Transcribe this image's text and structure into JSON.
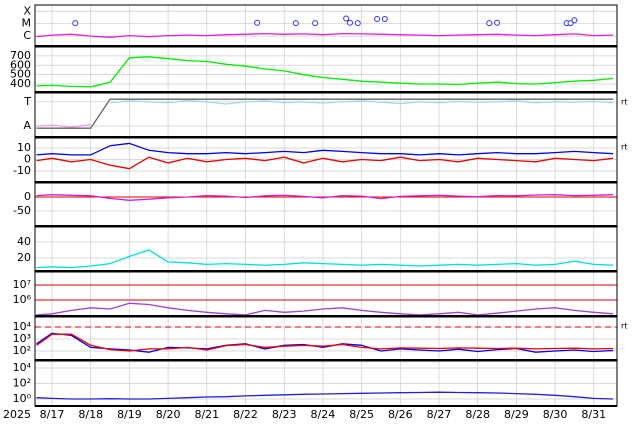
{
  "x_axis": {
    "year_label": "2025",
    "xlim": [
      16.56,
      31.6
    ],
    "xticks": [
      {
        "value": 17,
        "label": "8/17"
      },
      {
        "value": 18,
        "label": "8/18"
      },
      {
        "value": 19,
        "label": "8/19"
      },
      {
        "value": 20,
        "label": "8/20"
      },
      {
        "value": 21,
        "label": "8/21"
      },
      {
        "value": 22,
        "label": "8/22"
      },
      {
        "value": 23,
        "label": "8/23"
      },
      {
        "value": 24,
        "label": "8/24"
      },
      {
        "value": 25,
        "label": "8/25"
      },
      {
        "value": 26,
        "label": "8/26"
      },
      {
        "value": 27,
        "label": "8/27"
      },
      {
        "value": 28,
        "label": "8/28"
      },
      {
        "value": 29,
        "label": "8/29"
      },
      {
        "value": 30,
        "label": "8/30"
      },
      {
        "value": 31,
        "label": "8/31"
      }
    ]
  },
  "chart_data": [
    {
      "type": "line",
      "log_scale": true,
      "ylim": [
        1.6e-07,
        0.00032
      ],
      "yticks": [
        {
          "value": 0.0001,
          "label": "X"
        },
        {
          "value": 1e-05,
          "label": "M"
        },
        {
          "value": 1e-06,
          "label": "C"
        }
      ],
      "x": [
        16.6,
        17,
        17.5,
        18,
        18.5,
        19,
        19.5,
        20,
        20.5,
        21,
        21.5,
        22,
        22.5,
        23,
        23.5,
        24,
        24.5,
        25,
        25.5,
        26,
        26.5,
        27,
        27.5,
        28,
        28.5,
        29,
        29.5,
        30,
        30.5,
        31,
        31.5
      ],
      "series": [
        {
          "color": "#e020e0",
          "values": [
            9e-07,
            1.2e-06,
            1.4e-06,
            1e-06,
            8e-07,
            1.1e-06,
            9e-07,
            1.1e-06,
            1.2e-06,
            1.1e-06,
            1.3e-06,
            1.4e-06,
            1.6e-06,
            1.4e-06,
            1.5e-06,
            1.3e-06,
            1.6e-06,
            1.5e-06,
            1.4e-06,
            1.3e-06,
            1.2e-06,
            1.1e-06,
            1.2e-06,
            1.3e-06,
            1.4e-06,
            1.2e-06,
            1.1e-06,
            1.3e-06,
            1.5e-06,
            1.1e-06,
            1.2e-06
          ]
        },
        {
          "color": "#3030ff",
          "marker": "circle",
          "x": [
            17.6,
            22.3,
            23.3,
            23.8,
            24.6,
            24.7,
            24.9,
            25.4,
            25.6,
            28.3,
            28.5,
            30.3,
            30.4,
            30.5
          ],
          "values": [
            1.1e-05,
            1.2e-05,
            1.1e-05,
            1.1e-05,
            2.6e-05,
            1.2e-05,
            1.1e-05,
            2.4e-05,
            2.4e-05,
            1.1e-05,
            1.2e-05,
            1.1e-05,
            1.1e-05,
            1.9e-05
          ]
        }
      ]
    },
    {
      "type": "line",
      "ylim": [
        315,
        795
      ],
      "yticks": [
        400,
        500,
        600,
        700
      ],
      "x": [
        16.6,
        17,
        17.5,
        18,
        18.5,
        19,
        19.5,
        20,
        20.5,
        21,
        21.5,
        22,
        22.5,
        23,
        23.5,
        24,
        24.5,
        25,
        25.5,
        26,
        26.5,
        27,
        27.5,
        28,
        28.5,
        29,
        29.5,
        30,
        30.5,
        31,
        31.5
      ],
      "series": [
        {
          "color": "#00ee00",
          "values": [
            380,
            385,
            375,
            370,
            420,
            680,
            690,
            670,
            650,
            640,
            610,
            590,
            560,
            540,
            500,
            470,
            450,
            430,
            420,
            410,
            400,
            400,
            395,
            410,
            420,
            405,
            400,
            415,
            430,
            440,
            460
          ]
        }
      ]
    },
    {
      "type": "line",
      "ylim": [
        0,
        1
      ],
      "side_label": "rt",
      "yticks": [
        {
          "value": 0.8,
          "label": "T"
        },
        {
          "value": 0.25,
          "label": "A"
        }
      ],
      "x": [
        16.6,
        17,
        17.5,
        18,
        18.5,
        19,
        19.5,
        20,
        20.5,
        21,
        21.5,
        22,
        22.5,
        23,
        23.5,
        24,
        24.5,
        25,
        25.5,
        26,
        26.5,
        27,
        27.5,
        28,
        28.5,
        29,
        29.5,
        30,
        30.5,
        31,
        31.5
      ],
      "series": [
        {
          "color": "#f0a0f0",
          "values": [
            0.25,
            0.27,
            0.22,
            0.28,
            null,
            null,
            null,
            null,
            null,
            null,
            null,
            null,
            null,
            null,
            null,
            null,
            null,
            null,
            null,
            null,
            null,
            null,
            null,
            null,
            null,
            null,
            null,
            null,
            null,
            null,
            null
          ]
        },
        {
          "color": "#a0d8f8",
          "values": [
            null,
            null,
            null,
            null,
            0.78,
            0.82,
            0.8,
            0.78,
            0.83,
            0.8,
            0.75,
            0.8,
            0.82,
            0.78,
            0.8,
            0.77,
            0.8,
            0.82,
            0.79,
            0.76,
            0.8,
            0.78,
            0.81,
            0.79,
            0.8,
            0.82,
            0.78,
            0.8,
            0.79,
            0.81,
            0.78
          ]
        },
        {
          "color": "#666666",
          "values": [
            0.2,
            0.2,
            0.2,
            0.2,
            0.86,
            0.86,
            0.86,
            0.86,
            0.86,
            0.86,
            0.86,
            0.86,
            0.86,
            0.86,
            0.86,
            0.86,
            0.86,
            0.86,
            0.86,
            0.86,
            0.86,
            0.86,
            0.86,
            0.86,
            0.86,
            0.86,
            0.86,
            0.86,
            0.86,
            0.86,
            0.86
          ]
        }
      ]
    },
    {
      "type": "line",
      "ylim": [
        -19.6,
        18.7
      ],
      "yticks": [
        10,
        0,
        -10
      ],
      "side_label": "rt",
      "x": [
        16.6,
        17,
        17.5,
        18,
        18.5,
        19,
        19.5,
        20,
        20.5,
        21,
        21.5,
        22,
        22.5,
        23,
        23.5,
        24,
        24.5,
        25,
        25.5,
        26,
        26.5,
        27,
        27.5,
        28,
        28.5,
        29,
        29.5,
        30,
        30.5,
        31,
        31.5
      ],
      "series": [
        {
          "color": "#0000ee",
          "values": [
            4,
            5,
            4,
            4,
            12,
            14,
            8,
            6,
            5,
            5,
            6,
            5,
            6,
            7,
            6,
            8,
            7,
            6,
            5,
            5,
            4,
            5,
            4,
            5,
            6,
            5,
            5,
            6,
            7,
            6,
            5
          ]
        },
        {
          "color": "#ee0000",
          "values": [
            -1,
            1,
            -2,
            0,
            -5,
            -8,
            2,
            -3,
            1,
            -2,
            0,
            1,
            -1,
            2,
            -3,
            1,
            -2,
            0,
            -1,
            2,
            -1,
            0,
            -2,
            1,
            0,
            -1,
            -2,
            1,
            0,
            -1,
            1
          ]
        }
      ]
    },
    {
      "type": "line",
      "ylim": [
        -104,
        50
      ],
      "yticks": [
        0,
        -50
      ],
      "reference_line": 0,
      "x": [
        16.6,
        17,
        17.5,
        18,
        18.5,
        19,
        19.5,
        20,
        20.5,
        21,
        21.5,
        22,
        22.5,
        23,
        23.5,
        24,
        24.5,
        25,
        25.5,
        26,
        26.5,
        27,
        27.5,
        28,
        28.5,
        29,
        29.5,
        30,
        30.5,
        31,
        31.5
      ],
      "series": [
        {
          "color": "#d020d0",
          "values": [
            5,
            8,
            6,
            4,
            -5,
            -12,
            -8,
            -3,
            0,
            5,
            3,
            -2,
            4,
            6,
            2,
            -3,
            5,
            3,
            -6,
            2,
            4,
            6,
            3,
            1,
            5,
            4,
            7,
            8,
            5,
            6,
            8
          ]
        }
      ]
    },
    {
      "type": "line",
      "ylim": [
        3.75,
        58.75
      ],
      "yticks": [
        40,
        20
      ],
      "x": [
        16.6,
        17,
        17.5,
        18,
        18.5,
        19,
        19.5,
        20,
        20.5,
        21,
        21.5,
        22,
        22.5,
        23,
        23.5,
        24,
        24.5,
        25,
        25.5,
        26,
        26.5,
        27,
        27.5,
        28,
        28.5,
        29,
        29.5,
        30,
        30.5,
        31,
        31.5
      ],
      "series": [
        {
          "color": "#00e0e0",
          "values": [
            8,
            9,
            8,
            10,
            13,
            22,
            30,
            15,
            14,
            12,
            13,
            12,
            11,
            12,
            14,
            13,
            12,
            11,
            12,
            11,
            10,
            11,
            12,
            11,
            12,
            13,
            11,
            12,
            16,
            12,
            11
          ]
        }
      ]
    },
    {
      "type": "line",
      "log_scale": true,
      "ylim": [
        85000,
        74000000
      ],
      "thresholds": [
        10000000,
        1000000
      ],
      "yticks": [
        {
          "value": 10000000,
          "label": "10⁷"
        },
        {
          "value": 1000000,
          "label": "10⁶"
        }
      ],
      "x": [
        16.6,
        17,
        17.5,
        18,
        18.5,
        19,
        19.5,
        20,
        20.5,
        21,
        21.5,
        22,
        22.5,
        23,
        23.5,
        24,
        24.5,
        25,
        25.5,
        26,
        26.5,
        27,
        27.5,
        28,
        28.5,
        29,
        29.5,
        30,
        30.5,
        31,
        31.5
      ],
      "series": [
        {
          "color": "#a040d0",
          "values": [
            100000,
            120000,
            200000,
            300000,
            250000,
            600000,
            500000,
            300000,
            200000,
            150000,
            120000,
            100000,
            200000,
            150000,
            180000,
            250000,
            300000,
            200000,
            150000,
            120000,
            100000,
            120000,
            150000,
            100000,
            130000,
            180000,
            250000,
            300000,
            200000,
            150000,
            120000
          ]
        }
      ]
    },
    {
      "type": "line",
      "log_scale": true,
      "ylim": [
        17.8,
        67600
      ],
      "thresholds": [
        10000
      ],
      "threshold_dash": true,
      "side_label": "rt",
      "yticks": [
        {
          "value": 10000,
          "label": "10⁴"
        },
        {
          "value": 1000,
          "label": "10³"
        },
        {
          "value": 100,
          "label": "10²"
        }
      ],
      "x": [
        16.6,
        17,
        17.5,
        18,
        18.5,
        19,
        19.5,
        20,
        20.5,
        21,
        21.5,
        22,
        22.5,
        23,
        23.5,
        24,
        24.5,
        25,
        25.5,
        26,
        26.5,
        27,
        27.5,
        28,
        28.5,
        29,
        29.5,
        30,
        30.5,
        31,
        31.5
      ],
      "series": [
        {
          "color": "#0000ee",
          "values": [
            400,
            3000,
            2000,
            200,
            150,
            120,
            80,
            200,
            180,
            150,
            300,
            400,
            150,
            300,
            350,
            200,
            400,
            300,
            100,
            150,
            120,
            100,
            140,
            90,
            130,
            160,
            80,
            100,
            120,
            90,
            110
          ]
        },
        {
          "color": "#ee0000",
          "values": [
            300,
            2500,
            2500,
            300,
            130,
            100,
            150,
            150,
            200,
            120,
            280,
            350,
            200,
            250,
            300,
            250,
            350,
            200,
            150,
            180,
            170,
            160,
            180,
            170,
            160,
            170,
            150,
            160,
            170,
            150,
            160
          ]
        }
      ]
    },
    {
      "type": "line",
      "log_scale": true,
      "ylim": [
        0.126,
        79400
      ],
      "yticks": [
        {
          "value": 10000,
          "label": "10⁴"
        },
        {
          "value": 100,
          "label": "10²"
        },
        {
          "value": 1,
          "label": "10⁰"
        }
      ],
      "x": [
        16.6,
        17,
        17.5,
        18,
        18.5,
        19,
        19.5,
        20,
        20.5,
        21,
        21.5,
        22,
        22.5,
        23,
        23.5,
        24,
        24.5,
        25,
        25.5,
        26,
        26.5,
        27,
        27.5,
        28,
        28.5,
        29,
        29.5,
        30,
        30.5,
        31,
        31.5
      ],
      "series": [
        {
          "color": "#2020dd",
          "values": [
            1.5,
            1.2,
            1,
            1,
            1.1,
            1,
            1,
            1.2,
            1.5,
            1.8,
            2,
            2.5,
            3,
            3.5,
            4,
            4.5,
            5,
            5.5,
            6,
            6.5,
            7,
            7.5,
            7,
            6.5,
            6,
            5,
            4,
            3,
            2,
            1.2,
            1
          ]
        }
      ]
    }
  ]
}
